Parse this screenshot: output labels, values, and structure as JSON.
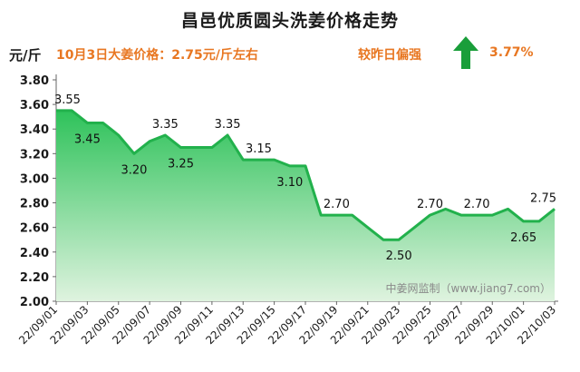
{
  "header": {
    "title": "昌邑优质圆头洗姜价格走势",
    "unit": "元/斤",
    "headline": "10月3日大姜价格：2.75元/斤左右",
    "compare_label": "较昨日偏强",
    "change_pct": "3.77%",
    "arrow_icon": "up-arrow-icon"
  },
  "watermark": "中姜网监制（www.jiang7.com）",
  "colors": {
    "line": "#22b14c",
    "fill_top": "#2ec25a",
    "fill_bottom": "#dff3df",
    "accent": "#e87722",
    "arrow": "#1a9e3a"
  },
  "chart_data": {
    "type": "area",
    "ylim": [
      2.0,
      3.8
    ],
    "y_ticks": [
      "2.00",
      "2.20",
      "2.40",
      "2.60",
      "2.80",
      "3.00",
      "3.20",
      "3.40",
      "3.60",
      "3.80"
    ],
    "x_ticks": [
      "22/09/01",
      "22/09/03",
      "22/09/05",
      "22/09/07",
      "22/09/09",
      "22/09/11",
      "22/09/13",
      "22/09/15",
      "22/09/17",
      "22/09/19",
      "22/09/21",
      "22/09/23",
      "22/09/25",
      "22/09/27",
      "22/09/29",
      "22/10/01",
      "22/10/03"
    ],
    "x": [
      "22/09/01",
      "22/09/02",
      "22/09/03",
      "22/09/04",
      "22/09/05",
      "22/09/06",
      "22/09/07",
      "22/09/08",
      "22/09/09",
      "22/09/10",
      "22/09/11",
      "22/09/12",
      "22/09/13",
      "22/09/14",
      "22/09/15",
      "22/09/16",
      "22/09/17",
      "22/09/18",
      "22/09/19",
      "22/09/20",
      "22/09/21",
      "22/09/22",
      "22/09/23",
      "22/09/24",
      "22/09/25",
      "22/09/26",
      "22/09/27",
      "22/09/28",
      "22/09/29",
      "22/09/30",
      "22/10/01",
      "22/10/02",
      "22/10/03"
    ],
    "values": [
      3.55,
      3.55,
      3.45,
      3.45,
      3.35,
      3.2,
      3.3,
      3.35,
      3.25,
      3.25,
      3.25,
      3.35,
      3.15,
      3.15,
      3.15,
      3.1,
      3.1,
      2.7,
      2.7,
      2.7,
      2.6,
      2.5,
      2.5,
      2.6,
      2.7,
      2.75,
      2.7,
      2.7,
      2.7,
      2.75,
      2.65,
      2.65,
      2.75
    ],
    "data_labels": [
      {
        "x": "22/09/01",
        "text": "3.55"
      },
      {
        "x": "22/09/03",
        "text": "3.45"
      },
      {
        "x": "22/09/06",
        "text": "3.20"
      },
      {
        "x": "22/09/08",
        "text": "3.35"
      },
      {
        "x": "22/09/09",
        "text": "3.25"
      },
      {
        "x": "22/09/12",
        "text": "3.35"
      },
      {
        "x": "22/09/14",
        "text": "3.15"
      },
      {
        "x": "22/09/16",
        "text": "3.10"
      },
      {
        "x": "22/09/19",
        "text": "2.70"
      },
      {
        "x": "22/09/23",
        "text": "2.50"
      },
      {
        "x": "22/09/25",
        "text": "2.70"
      },
      {
        "x": "22/09/28",
        "text": "2.70"
      },
      {
        "x": "22/10/01",
        "text": "2.65"
      },
      {
        "x": "22/10/03",
        "text": "2.75"
      }
    ],
    "grid": false,
    "legend": "none"
  }
}
